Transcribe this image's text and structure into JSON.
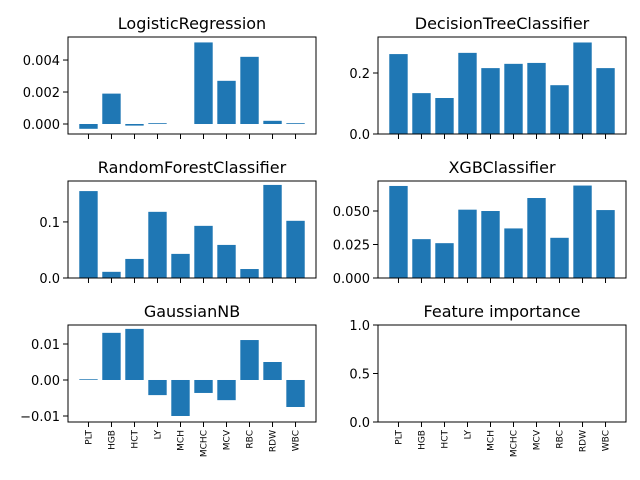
{
  "chart_data": [
    {
      "type": "bar",
      "title": "LogisticRegression",
      "color": "#1f77b4",
      "values": [
        -0.0003,
        0.0019,
        -0.0001,
        5e-05,
        0,
        0.0051,
        0.0027,
        0.0042,
        0.0002,
        5e-05
      ],
      "ylim": [
        -0.000625,
        0.00544
      ],
      "yticks": [
        {
          "value": 0,
          "label": "0.000"
        },
        0.002,
        0.004
      ]
    },
    {
      "type": "bar",
      "title": "DecisionTreeClassifier",
      "color": "#1f77b4",
      "values": [
        0.262,
        0.134,
        0.118,
        0.266,
        0.216,
        0.23,
        0.233,
        0.16,
        0.3,
        0.216
      ],
      "ylim": [
        0,
        0.318
      ],
      "yticks": [
        {
          "value": 0,
          "label": "0.0"
        },
        0.2
      ]
    },
    {
      "type": "bar",
      "title": "RandomForestClassifier",
      "color": "#1f77b4",
      "values": [
        0.155,
        0.011,
        0.034,
        0.118,
        0.043,
        0.093,
        0.059,
        0.016,
        0.166,
        0.102
      ],
      "ylim": [
        0,
        0.173
      ],
      "yticks": [
        {
          "value": 0,
          "label": "0.0"
        },
        0.1
      ]
    },
    {
      "type": "bar",
      "title": "XGBClassifier",
      "color": "#1f77b4",
      "values": [
        0.0687,
        0.029,
        0.026,
        0.051,
        0.05,
        0.037,
        0.0597,
        0.03,
        0.069,
        0.0507
      ],
      "ylim": [
        0,
        0.0724
      ],
      "yticks": [
        {
          "value": 0,
          "label": "0.000"
        },
        0.025,
        {
          "value": 0.05,
          "label": "0.050"
        }
      ]
    },
    {
      "type": "bar",
      "title": "GaussianNB",
      "color": "#1f77b4",
      "categories": [
        "PLT",
        "HGB",
        "HCT",
        "LY",
        "MCH",
        "MCHC",
        "MCV",
        "RBC",
        "RDW",
        "WBC"
      ],
      "values": [
        0.0002,
        0.0131,
        0.0142,
        -0.0042,
        -0.01,
        -0.0036,
        -0.0056,
        0.0111,
        0.005,
        -0.0075
      ],
      "ylim": [
        -0.01167,
        0.01528
      ],
      "yticks": [
        {
          "value": -0.01,
          "label": "−0.01"
        },
        {
          "value": 0,
          "label": "0.00"
        },
        0.01
      ]
    },
    {
      "type": "bar",
      "title": "Feature importance",
      "color": "#1f77b4",
      "categories": [
        "PLT",
        "HGB",
        "HCT",
        "LY",
        "MCH",
        "MCHC",
        "MCV",
        "RBC",
        "RDW",
        "WBC"
      ],
      "ylim": [
        0,
        1
      ],
      "yticks": [
        {
          "value": 0,
          "label": "0.0"
        },
        {
          "value": 0.5,
          "label": "0.5"
        },
        {
          "value": 1,
          "label": "1.0"
        }
      ]
    }
  ]
}
